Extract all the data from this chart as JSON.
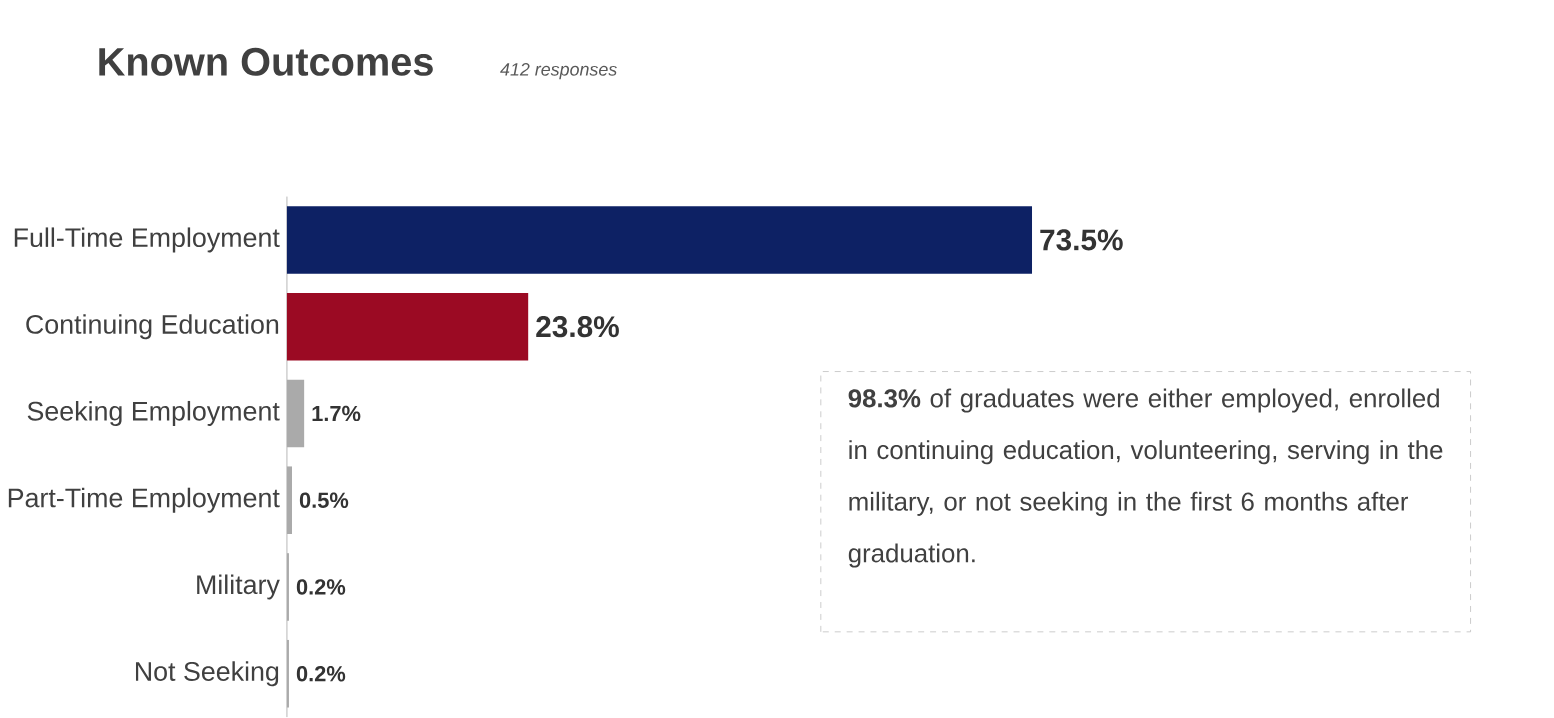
{
  "chart_data": {
    "type": "bar",
    "orientation": "horizontal",
    "title": "Known Outcomes",
    "subtitle": "412 responses",
    "categories": [
      "Full-Time Employment",
      "Continuing Education",
      "Seeking Employment",
      "Part-Time Employment",
      "Military",
      "Not Seeking"
    ],
    "values": [
      73.5,
      23.8,
      1.7,
      0.5,
      0.2,
      0.2
    ],
    "value_labels": [
      "73.5%",
      "23.8%",
      "1.7%",
      "0.5%",
      "0.2%",
      "0.2%"
    ],
    "colors": [
      "#0d2164",
      "#9b0a23",
      "#aaaaaa",
      "#aaaaaa",
      "#aaaaaa",
      "#aaaaaa"
    ],
    "annotations": [
      "**98.3%** of graduates were either employed, enrolled in continuing education, volunteering, serving in the military, or not seeking in the first 6 months after graduation."
    ]
  }
}
